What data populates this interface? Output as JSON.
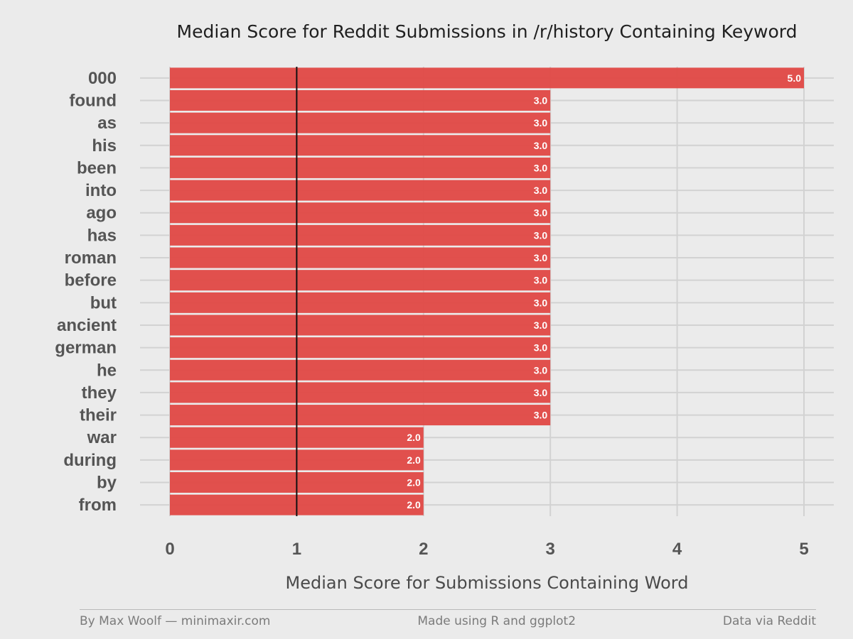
{
  "chart_data": {
    "type": "bar",
    "orientation": "horizontal",
    "title": "Median Score for Reddit Submissions in /r/history Containing Keyword",
    "xlabel": "Median Score for Submissions Containing Word",
    "ylabel": "",
    "categories": [
      "000",
      "found",
      "as",
      "his",
      "been",
      "into",
      "ago",
      "has",
      "roman",
      "before",
      "but",
      "ancient",
      "german",
      "he",
      "they",
      "their",
      "war",
      "during",
      "by",
      "from"
    ],
    "values": [
      5.0,
      3.0,
      3.0,
      3.0,
      3.0,
      3.0,
      3.0,
      3.0,
      3.0,
      3.0,
      3.0,
      3.0,
      3.0,
      3.0,
      3.0,
      3.0,
      2.0,
      2.0,
      2.0,
      2.0
    ],
    "value_labels": [
      "5.0",
      "3.0",
      "3.0",
      "3.0",
      "3.0",
      "3.0",
      "3.0",
      "3.0",
      "3.0",
      "3.0",
      "3.0",
      "3.0",
      "3.0",
      "3.0",
      "3.0",
      "3.0",
      "2.0",
      "2.0",
      "2.0",
      "2.0"
    ],
    "xlim": [
      0,
      5
    ],
    "xticks": [
      "0",
      "1",
      "2",
      "3",
      "4",
      "5"
    ],
    "reference_line": 1,
    "grid": true,
    "bar_color": "#e04845",
    "reference_line_color": "#111111",
    "background_color": "#ebebeb"
  },
  "footer": {
    "left": "By Max Woolf — minimaxir.com",
    "center": "Made using R and ggplot2",
    "right": "Data via Reddit"
  }
}
